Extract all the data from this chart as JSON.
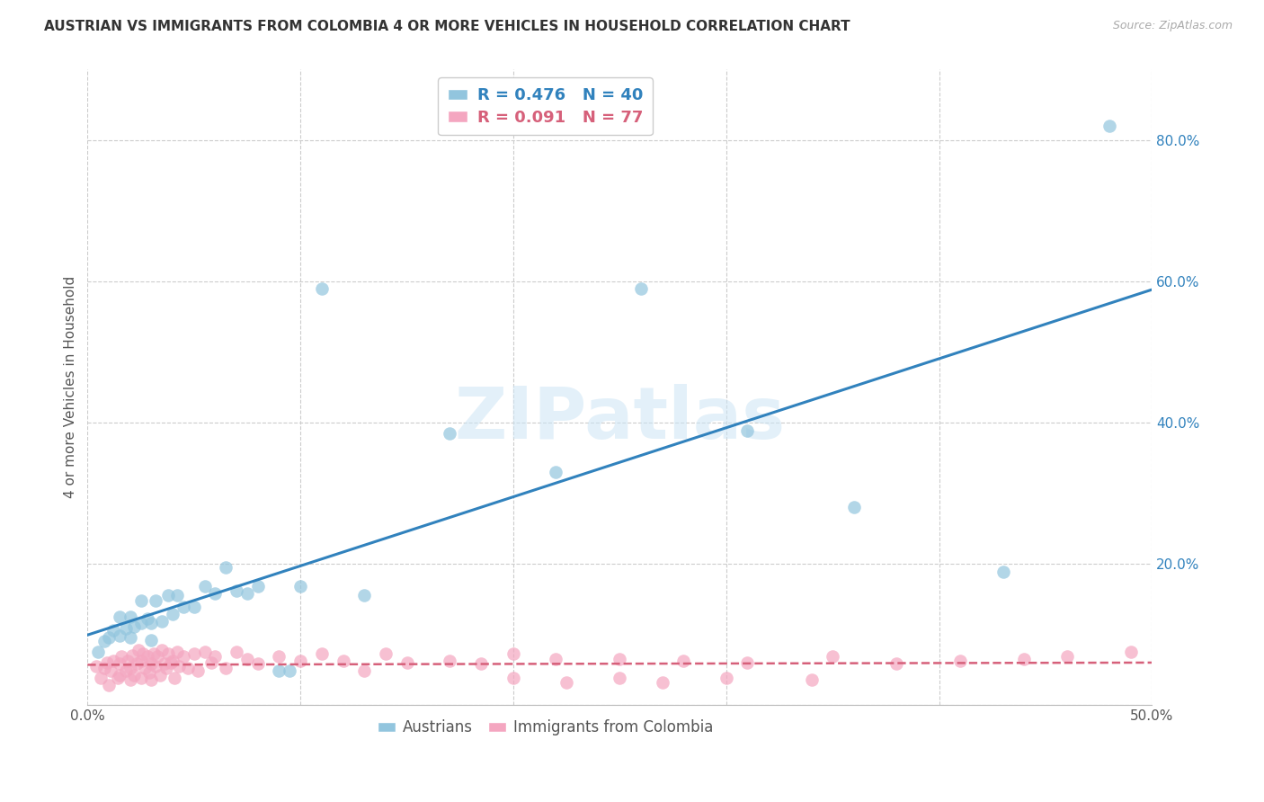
{
  "title": "AUSTRIAN VS IMMIGRANTS FROM COLOMBIA 4 OR MORE VEHICLES IN HOUSEHOLD CORRELATION CHART",
  "source": "Source: ZipAtlas.com",
  "ylabel": "4 or more Vehicles in Household",
  "xlim": [
    0.0,
    0.5
  ],
  "ylim": [
    0.0,
    0.9
  ],
  "xticks": [
    0.0,
    0.1,
    0.2,
    0.3,
    0.4,
    0.5
  ],
  "yticks": [
    0.0,
    0.2,
    0.4,
    0.6,
    0.8
  ],
  "austrian_R": 0.476,
  "austrian_N": 40,
  "colombia_R": 0.091,
  "colombia_N": 77,
  "blue_color": "#92c5de",
  "pink_color": "#f4a6c0",
  "blue_line_color": "#3182bd",
  "pink_line_color": "#d6607a",
  "background_color": "#ffffff",
  "grid_color": "#cccccc",
  "blue_x": [
    0.005,
    0.008,
    0.01,
    0.012,
    0.015,
    0.015,
    0.018,
    0.02,
    0.02,
    0.022,
    0.025,
    0.025,
    0.028,
    0.03,
    0.03,
    0.032,
    0.035,
    0.038,
    0.04,
    0.042,
    0.045,
    0.05,
    0.055,
    0.06,
    0.065,
    0.07,
    0.075,
    0.08,
    0.09,
    0.095,
    0.1,
    0.11,
    0.13,
    0.17,
    0.22,
    0.26,
    0.31,
    0.36,
    0.43,
    0.48
  ],
  "blue_y": [
    0.075,
    0.09,
    0.095,
    0.105,
    0.098,
    0.125,
    0.108,
    0.095,
    0.125,
    0.11,
    0.115,
    0.148,
    0.122,
    0.092,
    0.115,
    0.148,
    0.118,
    0.155,
    0.128,
    0.155,
    0.138,
    0.138,
    0.168,
    0.158,
    0.195,
    0.162,
    0.158,
    0.168,
    0.048,
    0.048,
    0.168,
    0.59,
    0.155,
    0.385,
    0.33,
    0.59,
    0.388,
    0.28,
    0.188,
    0.82
  ],
  "pink_x": [
    0.004,
    0.006,
    0.008,
    0.009,
    0.01,
    0.011,
    0.012,
    0.014,
    0.015,
    0.015,
    0.016,
    0.018,
    0.019,
    0.02,
    0.02,
    0.021,
    0.022,
    0.023,
    0.024,
    0.025,
    0.025,
    0.026,
    0.027,
    0.028,
    0.029,
    0.03,
    0.03,
    0.031,
    0.032,
    0.033,
    0.034,
    0.035,
    0.036,
    0.037,
    0.038,
    0.039,
    0.04,
    0.041,
    0.042,
    0.043,
    0.045,
    0.047,
    0.05,
    0.052,
    0.055,
    0.058,
    0.06,
    0.065,
    0.07,
    0.075,
    0.08,
    0.09,
    0.1,
    0.11,
    0.12,
    0.13,
    0.14,
    0.15,
    0.17,
    0.185,
    0.2,
    0.22,
    0.25,
    0.28,
    0.31,
    0.35,
    0.38,
    0.41,
    0.44,
    0.46,
    0.49,
    0.2,
    0.225,
    0.25,
    0.27,
    0.3,
    0.34
  ],
  "pink_y": [
    0.055,
    0.038,
    0.052,
    0.06,
    0.028,
    0.048,
    0.062,
    0.038,
    0.058,
    0.042,
    0.068,
    0.048,
    0.062,
    0.035,
    0.052,
    0.07,
    0.042,
    0.058,
    0.078,
    0.062,
    0.038,
    0.072,
    0.052,
    0.068,
    0.045,
    0.058,
    0.035,
    0.072,
    0.055,
    0.068,
    0.042,
    0.078,
    0.058,
    0.052,
    0.072,
    0.06,
    0.062,
    0.038,
    0.075,
    0.055,
    0.068,
    0.052,
    0.072,
    0.048,
    0.075,
    0.06,
    0.068,
    0.052,
    0.075,
    0.065,
    0.058,
    0.068,
    0.062,
    0.072,
    0.062,
    0.048,
    0.072,
    0.06,
    0.062,
    0.058,
    0.072,
    0.065,
    0.065,
    0.062,
    0.06,
    0.068,
    0.058,
    0.062,
    0.065,
    0.068,
    0.075,
    0.038,
    0.032,
    0.038,
    0.032,
    0.038,
    0.035
  ]
}
